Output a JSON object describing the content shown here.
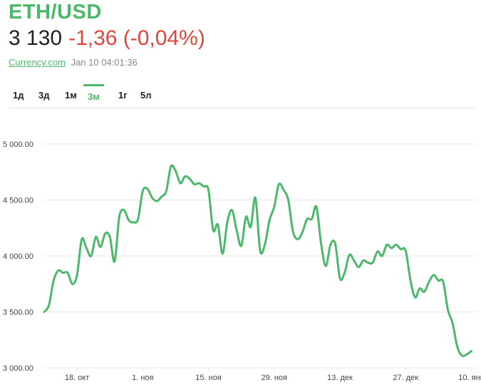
{
  "header": {
    "pair": "ETH/USD",
    "price": "3 130",
    "change": "-1,36 (-0,04%)",
    "source": "Currency.com",
    "timestamp": "Jan 10 04:01:36"
  },
  "tabs": [
    {
      "label": "1д",
      "active": false
    },
    {
      "label": "3д",
      "active": false
    },
    {
      "label": "1м",
      "active": false
    },
    {
      "label": "3м",
      "active": true
    },
    {
      "label": "1г",
      "active": false
    },
    {
      "label": "5л",
      "active": false
    }
  ],
  "colors": {
    "accent": "#4cb86a",
    "negative": "#e0443b",
    "grid": "#e6e6e6"
  },
  "chart_data": {
    "type": "line",
    "title": "",
    "xlabel": "",
    "ylabel": "",
    "ylim": [
      3000,
      5000
    ],
    "yticks": [
      {
        "value": 3000,
        "label": "3 000.00"
      },
      {
        "value": 3500,
        "label": "3 500.00"
      },
      {
        "value": 4000,
        "label": "4 000.00"
      },
      {
        "value": 4500,
        "label": "4 500.00"
      },
      {
        "value": 5000,
        "label": "5 000.00"
      }
    ],
    "xlim": [
      "2021-10-11",
      "2022-01-11"
    ],
    "xticks": [
      {
        "date": "2021-10-18",
        "label": "18. окт"
      },
      {
        "date": "2021-11-01",
        "label": "1. ноя"
      },
      {
        "date": "2021-11-15",
        "label": "15. ноя"
      },
      {
        "date": "2021-11-29",
        "label": "29. ноя"
      },
      {
        "date": "2021-12-13",
        "label": "13. дек"
      },
      {
        "date": "2021-12-27",
        "label": "27. дек"
      },
      {
        "date": "2022-01-10",
        "label": "10. янв"
      }
    ],
    "grid": true,
    "legend": "none",
    "series": [
      {
        "color": "#4cb86a",
        "points": [
          [
            "2021-10-11",
            3500
          ],
          [
            "2021-10-12",
            3560
          ],
          [
            "2021-10-13",
            3780
          ],
          [
            "2021-10-14",
            3870
          ],
          [
            "2021-10-15",
            3850
          ],
          [
            "2021-10-16",
            3850
          ],
          [
            "2021-10-17",
            3750
          ],
          [
            "2021-10-18",
            3830
          ],
          [
            "2021-10-19",
            4150
          ],
          [
            "2021-10-20",
            4070
          ],
          [
            "2021-10-21",
            4000
          ],
          [
            "2021-10-22",
            4170
          ],
          [
            "2021-10-23",
            4080
          ],
          [
            "2021-10-24",
            4200
          ],
          [
            "2021-10-25",
            4170
          ],
          [
            "2021-10-26",
            3950
          ],
          [
            "2021-10-27",
            4350
          ],
          [
            "2021-10-28",
            4410
          ],
          [
            "2021-10-29",
            4320
          ],
          [
            "2021-10-30",
            4300
          ],
          [
            "2021-10-31",
            4330
          ],
          [
            "2021-11-01",
            4580
          ],
          [
            "2021-11-02",
            4600
          ],
          [
            "2021-11-03",
            4520
          ],
          [
            "2021-11-04",
            4490
          ],
          [
            "2021-11-05",
            4530
          ],
          [
            "2021-11-06",
            4580
          ],
          [
            "2021-11-07",
            4800
          ],
          [
            "2021-11-08",
            4760
          ],
          [
            "2021-11-09",
            4650
          ],
          [
            "2021-11-10",
            4710
          ],
          [
            "2021-11-11",
            4690
          ],
          [
            "2021-11-12",
            4640
          ],
          [
            "2021-11-13",
            4650
          ],
          [
            "2021-11-14",
            4620
          ],
          [
            "2021-11-15",
            4590
          ],
          [
            "2021-11-16",
            4230
          ],
          [
            "2021-11-17",
            4280
          ],
          [
            "2021-11-18",
            4020
          ],
          [
            "2021-11-19",
            4300
          ],
          [
            "2021-11-20",
            4410
          ],
          [
            "2021-11-21",
            4230
          ],
          [
            "2021-11-22",
            4090
          ],
          [
            "2021-11-23",
            4350
          ],
          [
            "2021-11-24",
            4260
          ],
          [
            "2021-11-25",
            4520
          ],
          [
            "2021-11-26",
            4050
          ],
          [
            "2021-11-27",
            4100
          ],
          [
            "2021-11-28",
            4320
          ],
          [
            "2021-11-29",
            4440
          ],
          [
            "2021-11-30",
            4640
          ],
          [
            "2021-12-01",
            4590
          ],
          [
            "2021-12-02",
            4500
          ],
          [
            "2021-12-03",
            4220
          ],
          [
            "2021-12-04",
            4150
          ],
          [
            "2021-12-05",
            4210
          ],
          [
            "2021-12-06",
            4330
          ],
          [
            "2021-12-07",
            4330
          ],
          [
            "2021-12-08",
            4440
          ],
          [
            "2021-12-09",
            4110
          ],
          [
            "2021-12-10",
            3910
          ],
          [
            "2021-12-11",
            4100
          ],
          [
            "2021-12-12",
            4110
          ],
          [
            "2021-12-13",
            3800
          ],
          [
            "2021-12-14",
            3850
          ],
          [
            "2021-12-15",
            4010
          ],
          [
            "2021-12-16",
            3960
          ],
          [
            "2021-12-17",
            3900
          ],
          [
            "2021-12-18",
            3960
          ],
          [
            "2021-12-19",
            3940
          ],
          [
            "2021-12-20",
            3940
          ],
          [
            "2021-12-21",
            4040
          ],
          [
            "2021-12-22",
            4000
          ],
          [
            "2021-12-23",
            4100
          ],
          [
            "2021-12-24",
            4070
          ],
          [
            "2021-12-25",
            4100
          ],
          [
            "2021-12-26",
            4060
          ],
          [
            "2021-12-27",
            4050
          ],
          [
            "2021-12-28",
            3790
          ],
          [
            "2021-12-29",
            3630
          ],
          [
            "2021-12-30",
            3710
          ],
          [
            "2021-12-31",
            3680
          ],
          [
            "2022-01-01",
            3770
          ],
          [
            "2022-01-02",
            3830
          ],
          [
            "2022-01-03",
            3780
          ],
          [
            "2022-01-04",
            3770
          ],
          [
            "2022-01-05",
            3520
          ],
          [
            "2022-01-06",
            3400
          ],
          [
            "2022-01-07",
            3190
          ],
          [
            "2022-01-08",
            3110
          ],
          [
            "2022-01-09",
            3120
          ],
          [
            "2022-01-10",
            3150
          ]
        ]
      }
    ]
  }
}
